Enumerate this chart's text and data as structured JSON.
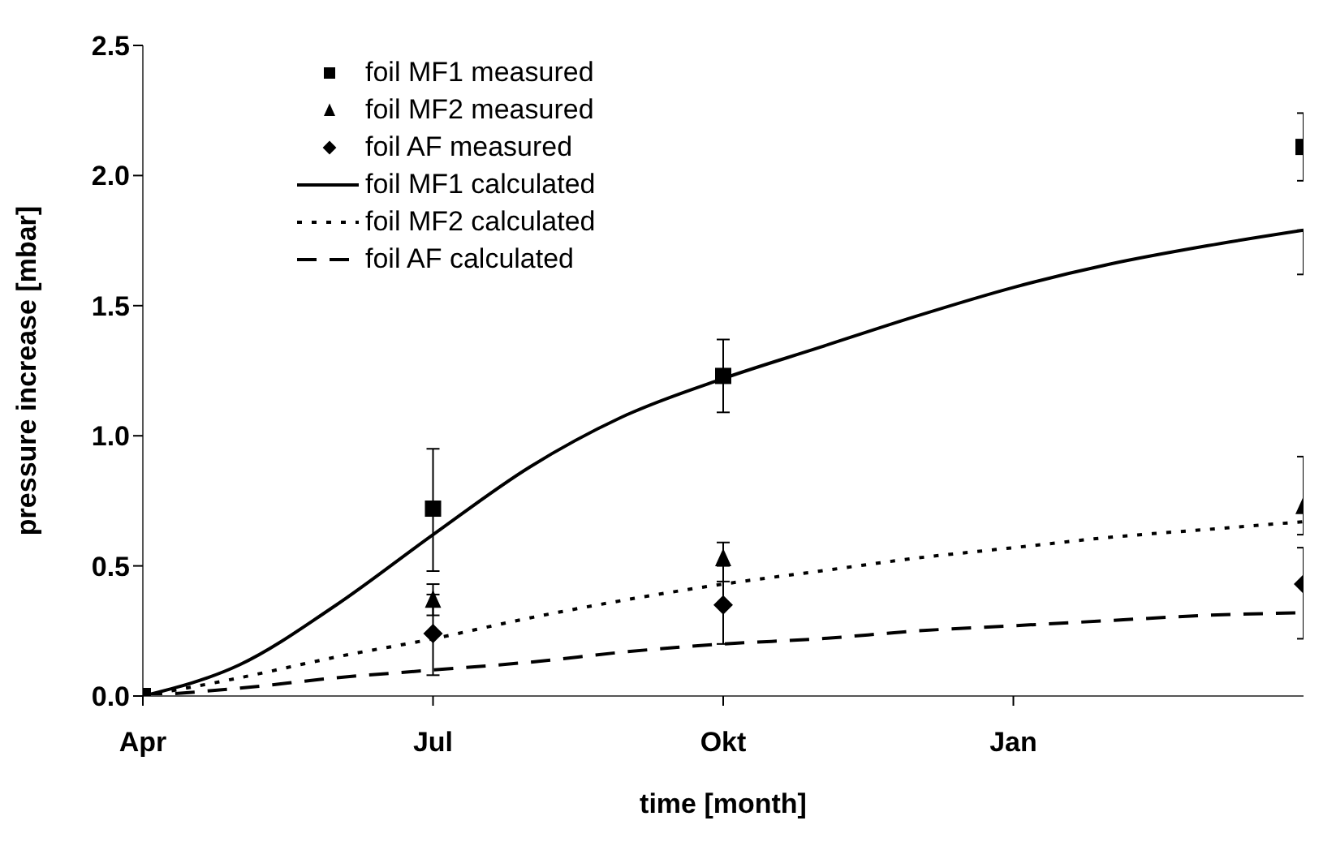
{
  "chart_data": {
    "type": "line",
    "xlabel": "time [month]",
    "ylabel": "pressure increase [mbar]",
    "categories": [
      "Apr",
      null,
      null,
      "Jul",
      null,
      null,
      "Okt",
      null,
      null,
      "Jan",
      null,
      null,
      null
    ],
    "ylim": [
      0,
      2.5
    ],
    "yticks": [
      {
        "value": 0,
        "label": "0.0"
      },
      {
        "value": 0.5,
        "label": "0.5"
      },
      {
        "value": 1,
        "label": "1.0"
      },
      {
        "value": 1.5,
        "label": "1.5"
      },
      {
        "value": 2,
        "label": "2.0"
      },
      {
        "value": 2.5,
        "label": "2.5"
      }
    ],
    "grid": false,
    "legend": "top left",
    "series": [
      {
        "name": "foil MF1 measured",
        "type": "scatter",
        "marker": "square",
        "color": "#000000",
        "values": [
          0,
          null,
          null,
          0.72,
          null,
          null,
          1.23,
          null,
          null,
          null,
          null,
          null,
          2.11
        ],
        "errors": [
          null,
          null,
          null,
          [
            0.48,
            0.95
          ],
          null,
          null,
          [
            1.09,
            1.37
          ],
          null,
          null,
          null,
          null,
          null,
          [
            1.98,
            2.24
          ]
        ]
      },
      {
        "name": "foil MF2 measured",
        "type": "scatter",
        "marker": "triangle",
        "color": "#000000",
        "values": [
          null,
          null,
          null,
          0.37,
          null,
          null,
          0.53,
          null,
          null,
          null,
          null,
          null,
          0.73
        ],
        "errors": [
          null,
          null,
          null,
          [
            0.31,
            0.43
          ],
          null,
          null,
          [
            0.44,
            0.59
          ],
          null,
          null,
          null,
          null,
          null,
          [
            0.62,
            0.92
          ]
        ]
      },
      {
        "name": "foil AF measured",
        "type": "scatter",
        "marker": "diamond",
        "color": "#000000",
        "values": [
          null,
          null,
          null,
          0.24,
          null,
          null,
          0.35,
          null,
          null,
          null,
          null,
          null,
          0.43
        ],
        "errors": [
          null,
          null,
          null,
          [
            0.08,
            0.39
          ],
          null,
          null,
          [
            0.2,
            0.5
          ],
          null,
          null,
          null,
          null,
          null,
          [
            0.22,
            0.57
          ]
        ]
      },
      {
        "name": "foil MF1 calculated",
        "line_style": "solid",
        "marker": "none",
        "color": "#000000",
        "values": [
          0,
          0.12,
          0.35,
          0.62,
          0.88,
          1.08,
          1.22,
          1.34,
          1.46,
          1.57,
          1.66,
          1.73,
          1.79
        ],
        "errors": [
          null,
          null,
          null,
          null,
          null,
          null,
          null,
          null,
          null,
          null,
          null,
          null,
          [
            1.62,
            1.79
          ]
        ]
      },
      {
        "name": "foil MF2 calculated",
        "line_style": "dotted",
        "marker": "none",
        "color": "#000000",
        "values": [
          0,
          0.07,
          0.15,
          0.22,
          0.3,
          0.37,
          0.43,
          0.48,
          0.53,
          0.57,
          0.61,
          0.64,
          0.67
        ]
      },
      {
        "name": "foil AF calculated",
        "line_style": "dashed",
        "marker": "none",
        "color": "#000000",
        "values": [
          0,
          0.03,
          0.07,
          0.1,
          0.13,
          0.17,
          0.2,
          0.22,
          0.25,
          0.27,
          0.29,
          0.31,
          0.32
        ]
      }
    ]
  }
}
